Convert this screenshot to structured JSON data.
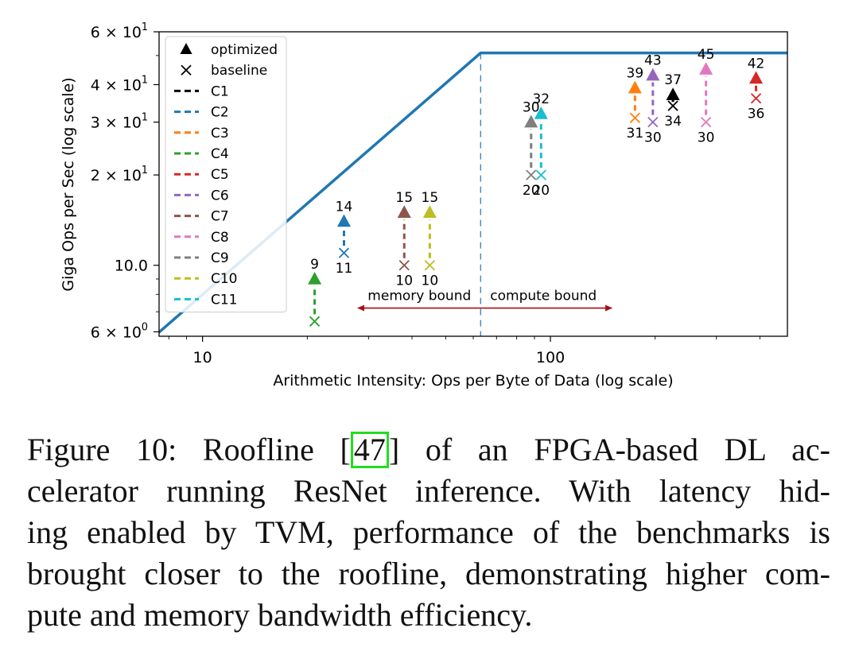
{
  "chart_data": {
    "type": "scatter",
    "title": "",
    "xlabel": "Arithmetic Intensity: Ops per Byte of Data (log scale)",
    "ylabel": "Giga Ops per Sec (log scale)",
    "xscale": "log",
    "yscale": "log",
    "xlim": [
      7.5,
      480
    ],
    "ylim": [
      5.8,
      60
    ],
    "x_ticks": [
      {
        "value": 10,
        "label": "10"
      },
      {
        "value": 100,
        "label": "100"
      }
    ],
    "y_ticks": [
      {
        "value": 6,
        "label": "6 × 10",
        "sup": "0"
      },
      {
        "value": 10,
        "label": "10.0",
        "sup": ""
      },
      {
        "value": 20,
        "label": "2 × 10",
        "sup": "1"
      },
      {
        "value": 30,
        "label": "3 × 10",
        "sup": "1"
      },
      {
        "value": 40,
        "label": "4 × 10",
        "sup": "1"
      },
      {
        "value": 60,
        "label": "6 × 10",
        "sup": "1"
      }
    ],
    "roofline": {
      "color": "#1f77b4",
      "points": [
        [
          6.9,
          5.5
        ],
        [
          63,
          51
        ],
        [
          480,
          51
        ]
      ],
      "ridge_x": 63
    },
    "annotations": {
      "memory_bound": "memory bound",
      "compute_bound": "compute bound",
      "arrow_x": [
        28,
        150
      ],
      "arrow_y": 7.2,
      "color": "#a50f15"
    },
    "legend": {
      "position": "upper-left",
      "marker_entries": [
        {
          "label": "optimized",
          "symbol": "triangle"
        },
        {
          "label": "baseline",
          "symbol": "x"
        }
      ]
    },
    "series": [
      {
        "name": "C1",
        "color": "#000000",
        "x": 225,
        "baseline": 34,
        "optimized": 37,
        "baseline_label": "34",
        "optimized_label": "37"
      },
      {
        "name": "C2",
        "color": "#1f77b4",
        "x": 25.5,
        "baseline": 11,
        "optimized": 14,
        "baseline_label": "11",
        "optimized_label": "14"
      },
      {
        "name": "C3",
        "color": "#ff7f0e",
        "x": 175,
        "baseline": 31,
        "optimized": 39,
        "baseline_label": "31",
        "optimized_label": "39"
      },
      {
        "name": "C4",
        "color": "#2ca02c",
        "x": 21,
        "baseline": 6.5,
        "optimized": 9,
        "baseline_label": "",
        "optimized_label": "9"
      },
      {
        "name": "C5",
        "color": "#d62728",
        "x": 390,
        "baseline": 36,
        "optimized": 42,
        "baseline_label": "36",
        "optimized_label": "42"
      },
      {
        "name": "C6",
        "color": "#9467bd",
        "x": 197,
        "baseline": 30,
        "optimized": 43,
        "baseline_label": "30",
        "optimized_label": "43"
      },
      {
        "name": "C7",
        "color": "#8c564b",
        "x": 38,
        "baseline": 10,
        "optimized": 15,
        "baseline_label": "10",
        "optimized_label": "15"
      },
      {
        "name": "C8",
        "color": "#e377c2",
        "x": 280,
        "baseline": 30,
        "optimized": 45,
        "baseline_label": "30",
        "optimized_label": "45"
      },
      {
        "name": "C9",
        "color": "#7f7f7f",
        "x": 88,
        "baseline": 20,
        "optimized": 30,
        "baseline_label": "20",
        "optimized_label": "30"
      },
      {
        "name": "C10",
        "color": "#bcbd22",
        "x": 45,
        "baseline": 10,
        "optimized": 15,
        "baseline_label": "10",
        "optimized_label": "15"
      },
      {
        "name": "C11",
        "color": "#17becf",
        "x": 94,
        "baseline": 20,
        "optimized": 32,
        "baseline_label": "20",
        "optimized_label": "32"
      }
    ]
  },
  "caption": {
    "line1_pre": "Figure 10:  Roofline [",
    "citation": "47",
    "line1_post": "] of an FPGA-based DL ac-",
    "line2": "celerator running ResNet inference.  With latency hid-",
    "line3": "ing enabled by TVM, performance of the benchmarks is",
    "line4": "brought closer to the roofline, demonstrating higher com-",
    "line5": "pute and memory bandwidth efficiency."
  }
}
